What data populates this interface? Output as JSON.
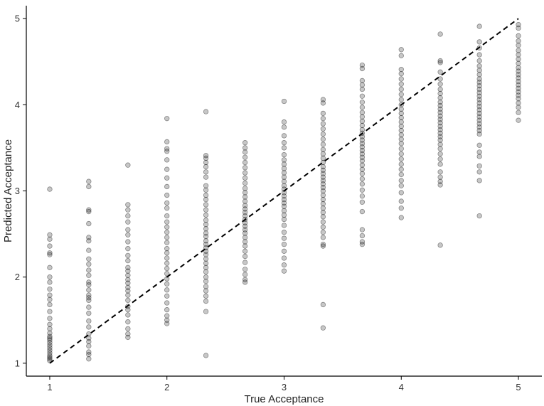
{
  "chart_data": {
    "type": "scatter",
    "title": "",
    "xlabel": "True Acceptance",
    "ylabel": "Predicted Acceptance",
    "xlim": [
      0.8,
      5.2
    ],
    "ylim": [
      0.85,
      5.15
    ],
    "xticks": [
      1,
      2,
      3,
      4,
      5
    ],
    "yticks": [
      1,
      2,
      3,
      4,
      5
    ],
    "grid": false,
    "legend": "none",
    "point_color": "#000000",
    "reference_line": {
      "style": "dashed",
      "color": "#000000",
      "from": [
        1,
        1
      ],
      "to": [
        5,
        5
      ]
    },
    "columns": [
      {
        "x": 1.0,
        "y": [
          3.02,
          2.49,
          2.44,
          2.36,
          2.28,
          2.26,
          2.11,
          2.0,
          1.94,
          1.86,
          1.79,
          1.74,
          1.68,
          1.6,
          1.52,
          1.45,
          1.4,
          1.35,
          1.31,
          1.29,
          1.27,
          1.24,
          1.21,
          1.18,
          1.15,
          1.12,
          1.09,
          1.07,
          1.05,
          1.03
        ]
      },
      {
        "x": 1.333,
        "y": [
          3.11,
          3.05,
          2.78,
          2.76,
          2.62,
          2.46,
          2.42,
          2.31,
          2.21,
          2.15,
          2.08,
          2.02,
          1.94,
          1.91,
          1.85,
          1.79,
          1.76,
          1.73,
          1.65,
          1.58,
          1.49,
          1.42,
          1.34,
          1.29,
          1.25,
          1.2,
          1.13,
          1.1,
          1.05
        ]
      },
      {
        "x": 1.667,
        "y": [
          3.3,
          2.84,
          2.78,
          2.71,
          2.64,
          2.55,
          2.49,
          2.41,
          2.33,
          2.25,
          2.19,
          2.11,
          2.07,
          2.02,
          1.97,
          1.93,
          1.88,
          1.84,
          1.79,
          1.73,
          1.66,
          1.62,
          1.56,
          1.48,
          1.4,
          1.34,
          1.3
        ]
      },
      {
        "x": 2.0,
        "y": [
          3.84,
          3.57,
          3.49,
          3.46,
          3.36,
          3.25,
          3.15,
          3.05,
          2.95,
          2.86,
          2.8,
          2.71,
          2.64,
          2.58,
          2.52,
          2.46,
          2.4,
          2.33,
          2.28,
          2.22,
          2.16,
          2.1,
          2.04,
          1.98,
          1.92,
          1.85,
          1.78,
          1.7,
          1.62,
          1.55,
          1.5,
          1.46
        ]
      },
      {
        "x": 2.333,
        "y": [
          3.92,
          3.41,
          3.38,
          3.33,
          3.28,
          3.22,
          3.16,
          3.06,
          3.01,
          2.95,
          2.9,
          2.84,
          2.78,
          2.72,
          2.66,
          2.61,
          2.56,
          2.51,
          2.47,
          2.42,
          2.38,
          2.34,
          2.3,
          2.26,
          2.21,
          2.16,
          2.11,
          2.06,
          2.0,
          1.95,
          1.89,
          1.84,
          1.78,
          1.72,
          1.6,
          1.09
        ]
      },
      {
        "x": 2.667,
        "y": [
          3.56,
          3.5,
          3.45,
          3.39,
          3.33,
          3.27,
          3.21,
          3.15,
          3.09,
          3.03,
          2.98,
          2.93,
          2.88,
          2.83,
          2.79,
          2.75,
          2.71,
          2.67,
          2.63,
          2.59,
          2.55,
          2.51,
          2.46,
          2.41,
          2.36,
          2.3,
          2.24,
          2.17,
          2.09,
          2.03,
          1.97,
          1.94
        ]
      },
      {
        "x": 3.0,
        "y": [
          4.04,
          3.8,
          3.74,
          3.64,
          3.56,
          3.5,
          3.42,
          3.36,
          3.31,
          3.26,
          3.21,
          3.16,
          3.11,
          3.06,
          3.02,
          2.98,
          2.94,
          2.9,
          2.86,
          2.82,
          2.77,
          2.72,
          2.67,
          2.6,
          2.52,
          2.45,
          2.38,
          2.3,
          2.22,
          2.14,
          2.07
        ]
      },
      {
        "x": 3.333,
        "y": [
          4.06,
          4.02,
          3.9,
          3.84,
          3.78,
          3.72,
          3.66,
          3.6,
          3.54,
          3.48,
          3.43,
          3.38,
          3.33,
          3.28,
          3.24,
          3.2,
          3.16,
          3.12,
          3.08,
          3.04,
          3.0,
          2.95,
          2.9,
          2.85,
          2.8,
          2.75,
          2.7,
          2.64,
          2.58,
          2.52,
          2.46,
          2.38,
          2.36,
          1.68,
          1.41
        ]
      },
      {
        "x": 3.667,
        "y": [
          4.46,
          4.42,
          4.28,
          4.23,
          4.18,
          4.1,
          4.03,
          3.97,
          3.91,
          3.86,
          3.81,
          3.76,
          3.71,
          3.67,
          3.63,
          3.59,
          3.55,
          3.51,
          3.47,
          3.43,
          3.39,
          3.35,
          3.3,
          3.25,
          3.2,
          3.14,
          3.08,
          3.01,
          2.94,
          2.87,
          2.76,
          2.55,
          2.48,
          2.41,
          2.38
        ]
      },
      {
        "x": 4.0,
        "y": [
          4.64,
          4.57,
          4.41,
          4.36,
          4.3,
          4.24,
          4.18,
          4.12,
          4.06,
          4.0,
          3.95,
          3.9,
          3.85,
          3.8,
          3.75,
          3.7,
          3.65,
          3.6,
          3.55,
          3.49,
          3.43,
          3.37,
          3.31,
          3.25,
          3.19,
          3.12,
          3.06,
          2.98,
          2.88,
          2.8,
          2.69
        ]
      },
      {
        "x": 4.333,
        "y": [
          4.82,
          4.51,
          4.49,
          4.38,
          4.3,
          4.24,
          4.18,
          4.13,
          4.08,
          4.03,
          3.99,
          3.95,
          3.91,
          3.87,
          3.83,
          3.79,
          3.75,
          3.71,
          3.67,
          3.63,
          3.59,
          3.54,
          3.49,
          3.43,
          3.37,
          3.31,
          3.22,
          3.16,
          3.11,
          3.07,
          2.37
        ]
      },
      {
        "x": 4.667,
        "y": [
          4.91,
          4.73,
          4.66,
          4.58,
          4.51,
          4.45,
          4.4,
          4.35,
          4.3,
          4.26,
          4.22,
          4.18,
          4.14,
          4.1,
          4.06,
          4.02,
          3.98,
          3.94,
          3.9,
          3.86,
          3.82,
          3.78,
          3.74,
          3.7,
          3.66,
          3.53,
          3.45,
          3.4,
          3.29,
          3.22,
          3.12,
          2.71
        ]
      },
      {
        "x": 5.0,
        "y": [
          4.93,
          4.89,
          4.8,
          4.74,
          4.69,
          4.63,
          4.58,
          4.53,
          4.48,
          4.43,
          4.39,
          4.35,
          4.31,
          4.27,
          4.23,
          4.19,
          4.15,
          4.11,
          4.07,
          4.02,
          3.97,
          3.91,
          3.82
        ]
      }
    ]
  }
}
